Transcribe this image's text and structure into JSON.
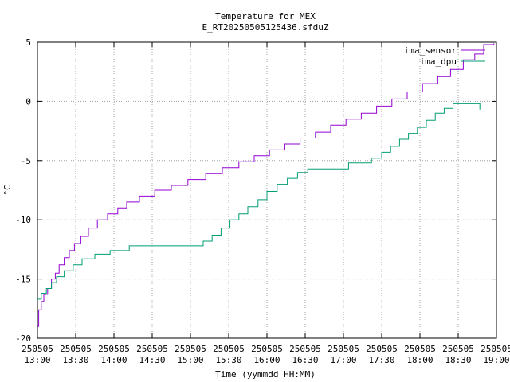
{
  "chart_data": {
    "type": "line",
    "title": "Temperature for MEX",
    "subtitle": "E_RT20250505125436.sfduZ",
    "xlabel": "Time (yymmdd HH:MM)",
    "ylabel": "°C",
    "ylim": [
      -20,
      5
    ],
    "yticks": [
      -20,
      -15,
      -10,
      -5,
      0,
      5
    ],
    "xlim": [
      "2025-05-05 13:00",
      "2025-05-05 19:00"
    ],
    "xticks": [
      {
        "t": "2025-05-05 13:00",
        "date": "250505",
        "time": "13:00"
      },
      {
        "t": "2025-05-05 13:30",
        "date": "250505",
        "time": "13:30"
      },
      {
        "t": "2025-05-05 14:00",
        "date": "250505",
        "time": "14:00"
      },
      {
        "t": "2025-05-05 14:30",
        "date": "250505",
        "time": "14:30"
      },
      {
        "t": "2025-05-05 15:00",
        "date": "250505",
        "time": "15:00"
      },
      {
        "t": "2025-05-05 15:30",
        "date": "250505",
        "time": "15:30"
      },
      {
        "t": "2025-05-05 16:00",
        "date": "250505",
        "time": "16:00"
      },
      {
        "t": "2025-05-05 16:30",
        "date": "250505",
        "time": "16:30"
      },
      {
        "t": "2025-05-05 17:00",
        "date": "250505",
        "time": "17:00"
      },
      {
        "t": "2025-05-05 17:30",
        "date": "250505",
        "time": "17:30"
      },
      {
        "t": "2025-05-05 18:00",
        "date": "250505",
        "time": "18:00"
      },
      {
        "t": "2025-05-05 18:30",
        "date": "250505",
        "time": "18:30"
      },
      {
        "t": "2025-05-05 19:00",
        "date": "250505",
        "time": "19:00"
      }
    ],
    "grid": true,
    "legend_position": "top-right",
    "series": [
      {
        "name": "ima_sensor",
        "color": "#9400d3",
        "points": [
          [
            "2025-05-05 13:00",
            -19.0
          ],
          [
            "2025-05-05 13:01",
            -17.6
          ],
          [
            "2025-05-05 13:03",
            -16.9
          ],
          [
            "2025-05-05 13:05",
            -16.3
          ],
          [
            "2025-05-05 13:08",
            -15.8
          ],
          [
            "2025-05-05 13:11",
            -15.0
          ],
          [
            "2025-05-05 13:14",
            -14.5
          ],
          [
            "2025-05-05 13:17",
            -13.8
          ],
          [
            "2025-05-05 13:21",
            -13.2
          ],
          [
            "2025-05-05 13:25",
            -12.6
          ],
          [
            "2025-05-05 13:29",
            -12.0
          ],
          [
            "2025-05-05 13:34",
            -11.4
          ],
          [
            "2025-05-05 13:40",
            -10.7
          ],
          [
            "2025-05-05 13:47",
            -10.0
          ],
          [
            "2025-05-05 13:55",
            -9.5
          ],
          [
            "2025-05-05 14:03",
            -9.0
          ],
          [
            "2025-05-05 14:10",
            -8.5
          ],
          [
            "2025-05-05 14:20",
            -8.0
          ],
          [
            "2025-05-05 14:32",
            -7.5
          ],
          [
            "2025-05-05 14:45",
            -7.1
          ],
          [
            "2025-05-05 14:58",
            -6.6
          ],
          [
            "2025-05-05 15:12",
            -6.1
          ],
          [
            "2025-05-05 15:25",
            -5.6
          ],
          [
            "2025-05-05 15:38",
            -5.1
          ],
          [
            "2025-05-05 15:50",
            -4.6
          ],
          [
            "2025-05-05 16:02",
            -4.1
          ],
          [
            "2025-05-05 16:14",
            -3.6
          ],
          [
            "2025-05-05 16:26",
            -3.1
          ],
          [
            "2025-05-05 16:38",
            -2.6
          ],
          [
            "2025-05-05 16:50",
            -2.0
          ],
          [
            "2025-05-05 17:02",
            -1.5
          ],
          [
            "2025-05-05 17:14",
            -1.0
          ],
          [
            "2025-05-05 17:26",
            -0.4
          ],
          [
            "2025-05-05 17:38",
            0.2
          ],
          [
            "2025-05-05 17:50",
            0.8
          ],
          [
            "2025-05-05 18:02",
            1.5
          ],
          [
            "2025-05-05 18:14",
            2.1
          ],
          [
            "2025-05-05 18:24",
            2.7
          ],
          [
            "2025-05-05 18:34",
            3.5
          ],
          [
            "2025-05-05 18:43",
            4.0
          ],
          [
            "2025-05-05 18:50",
            4.8
          ],
          [
            "2025-05-05 18:58",
            4.9
          ]
        ]
      },
      {
        "name": "ima_dpu",
        "color": "#009e73",
        "points": [
          [
            "2025-05-05 13:00",
            -16.7
          ],
          [
            "2025-05-05 13:03",
            -16.2
          ],
          [
            "2025-05-05 13:07",
            -15.8
          ],
          [
            "2025-05-05 13:11",
            -15.3
          ],
          [
            "2025-05-05 13:15",
            -14.8
          ],
          [
            "2025-05-05 13:21",
            -14.3
          ],
          [
            "2025-05-05 13:28",
            -13.8
          ],
          [
            "2025-05-05 13:35",
            -13.3
          ],
          [
            "2025-05-05 13:45",
            -12.9
          ],
          [
            "2025-05-05 13:57",
            -12.6
          ],
          [
            "2025-05-05 14:12",
            -12.2
          ],
          [
            "2025-05-05 14:30",
            -12.2
          ],
          [
            "2025-05-05 15:06",
            -12.2
          ],
          [
            "2025-05-05 15:10",
            -11.8
          ],
          [
            "2025-05-05 15:17",
            -11.3
          ],
          [
            "2025-05-05 15:24",
            -10.7
          ],
          [
            "2025-05-05 15:31",
            -10.0
          ],
          [
            "2025-05-05 15:38",
            -9.5
          ],
          [
            "2025-05-05 15:45",
            -8.9
          ],
          [
            "2025-05-05 15:53",
            -8.3
          ],
          [
            "2025-05-05 16:00",
            -7.6
          ],
          [
            "2025-05-05 16:08",
            -7.0
          ],
          [
            "2025-05-05 16:16",
            -6.5
          ],
          [
            "2025-05-05 16:24",
            -6.0
          ],
          [
            "2025-05-05 16:32",
            -5.7
          ],
          [
            "2025-05-05 17:00",
            -5.7
          ],
          [
            "2025-05-05 17:04",
            -5.2
          ],
          [
            "2025-05-05 17:16",
            -5.2
          ],
          [
            "2025-05-05 17:22",
            -4.8
          ],
          [
            "2025-05-05 17:30",
            -4.3
          ],
          [
            "2025-05-05 17:37",
            -3.8
          ],
          [
            "2025-05-05 17:44",
            -3.2
          ],
          [
            "2025-05-05 17:51",
            -2.7
          ],
          [
            "2025-05-05 17:58",
            -2.2
          ],
          [
            "2025-05-05 18:05",
            -1.6
          ],
          [
            "2025-05-05 18:12",
            -1.0
          ],
          [
            "2025-05-05 18:19",
            -0.6
          ],
          [
            "2025-05-05 18:26",
            -0.2
          ],
          [
            "2025-05-05 18:45",
            -0.2
          ],
          [
            "2025-05-05 18:47",
            -0.7
          ]
        ]
      }
    ]
  }
}
